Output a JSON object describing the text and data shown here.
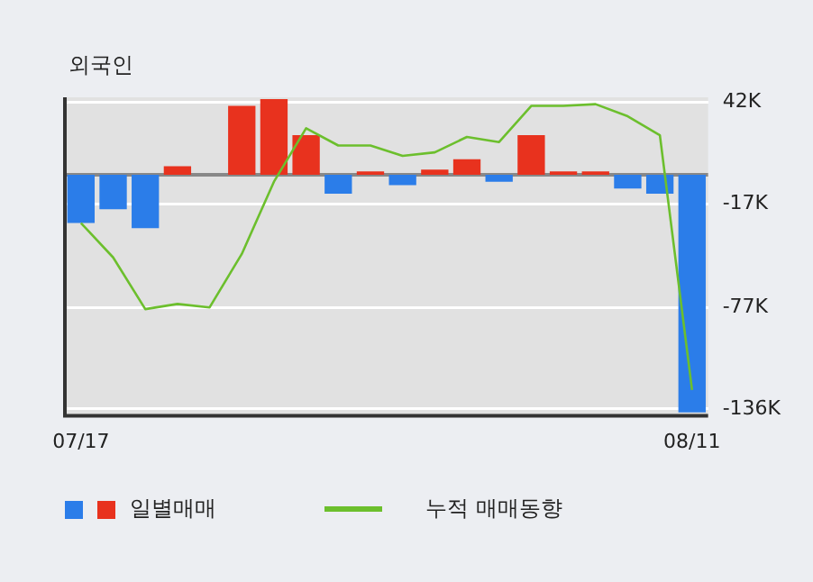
{
  "chart_data": {
    "type": "bar",
    "title": "외국인",
    "categories": [
      "07/17",
      null,
      null,
      null,
      null,
      null,
      null,
      null,
      null,
      null,
      null,
      null,
      null,
      null,
      null,
      null,
      null,
      null,
      null,
      "08/11"
    ],
    "series": [
      {
        "name": "일별매매",
        "colors": [
          "#2b7de9",
          "#2b7de9",
          "#2b7de9",
          "#e8321e",
          null,
          "#e8321e",
          "#e8321e",
          "#e8321e",
          "#2b7de9",
          "#e8321e",
          "#2b7de9",
          "#e8321e",
          "#e8321e",
          "#2b7de9",
          "#e8321e",
          "#e8321e",
          "#e8321e",
          "#2b7de9",
          "#2b7de9",
          "#2b7de9"
        ],
        "values": [
          -28,
          -20,
          -31,
          5,
          0,
          40,
          44,
          23,
          -11,
          2,
          -6,
          3,
          9,
          -4,
          23,
          2,
          2,
          -8,
          -11,
          -138
        ]
      },
      {
        "name": "누적 매매동향",
        "type": "line",
        "color": "#6cbf2d",
        "values": [
          -28,
          -48,
          -78,
          -75,
          -77,
          -46,
          -4,
          27,
          17,
          17,
          11,
          13,
          22,
          19,
          40,
          40,
          41,
          34,
          23,
          -125
        ]
      }
    ],
    "ylim": [
      -140,
      45
    ],
    "yticks": [
      {
        "value": 42,
        "label": "42K"
      },
      {
        "value": -17,
        "label": "-17K"
      },
      {
        "value": -77,
        "label": "-77K"
      },
      {
        "value": -136,
        "label": "-136K"
      }
    ],
    "grid": "y",
    "legend": "bottom",
    "marker": "none",
    "line_style": "solid"
  }
}
